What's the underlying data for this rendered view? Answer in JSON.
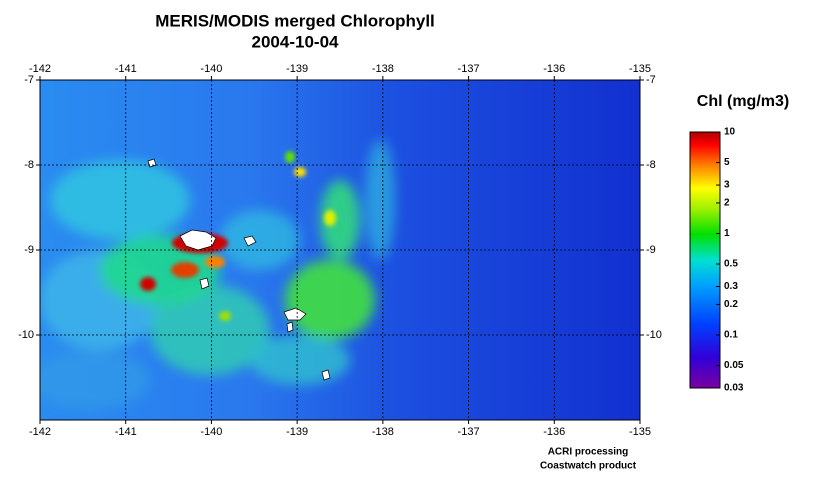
{
  "map": {
    "title": "MERIS/MODIS merged Chlorophyll",
    "subtitle": "2004-10-04",
    "xlim": [
      -142,
      -135
    ],
    "ylim": [
      -7,
      -11
    ],
    "xticks": [
      -142,
      -141,
      -140,
      -139,
      -138,
      -137,
      -136,
      -135
    ],
    "yticks": [
      -7,
      -8,
      -9,
      -10
    ],
    "grid": true,
    "colorbar": {
      "label": "Chl (mg/m3)",
      "scale": "log",
      "lim": [
        0.03,
        10
      ],
      "ticks": [
        10,
        5,
        3,
        2,
        1,
        0.5,
        0.3,
        0.2,
        0.1,
        0.05,
        0.03
      ]
    },
    "credits": [
      "ACRI processing",
      "Coastwatch product"
    ]
  }
}
